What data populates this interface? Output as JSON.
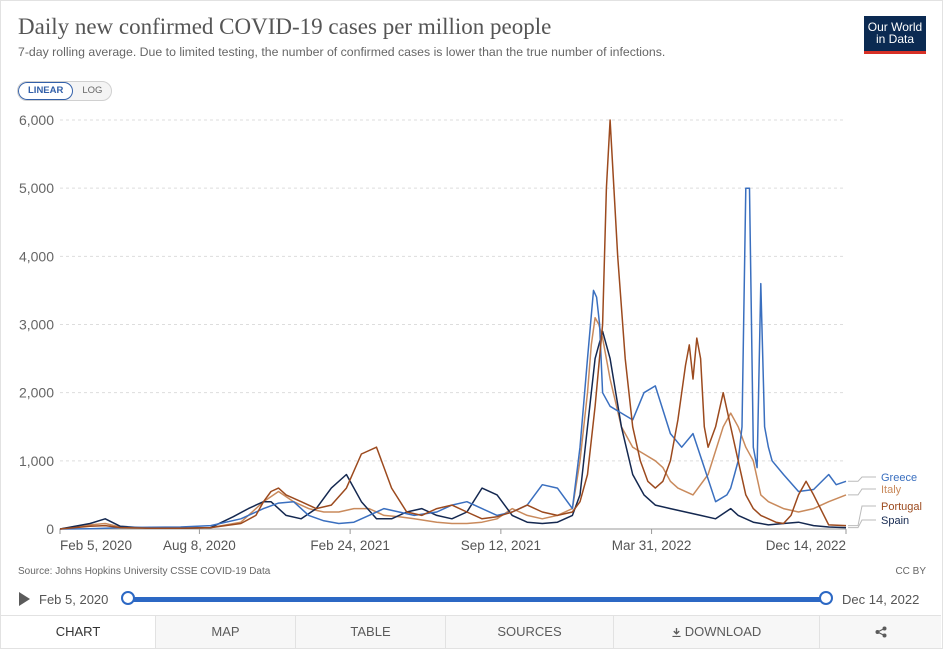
{
  "header": {
    "title": "Daily new confirmed COVID-19 cases per million people",
    "subtitle": "7-day rolling average. Due to limited testing, the number of confirmed cases is lower than the true number of infections.",
    "logo_line1": "Our World",
    "logo_line2": "in Data"
  },
  "scale_toggle": {
    "linear": "LINEAR",
    "log": "LOG"
  },
  "footer": {
    "source": "Source: Johns Hopkins University CSSE COVID-19 Data",
    "license": "CC BY"
  },
  "timeline": {
    "start": "Feb 5, 2020",
    "end": "Dec 14, 2022"
  },
  "tabs": {
    "chart": "CHART",
    "map": "MAP",
    "table": "TABLE",
    "sources": "SOURCES",
    "download": "DOWNLOAD"
  },
  "colors": {
    "Greece": "#3a6fbf",
    "Italy": "#c98a5c",
    "Portugal": "#9c4a1e",
    "Spain": "#142850"
  },
  "chart_data": {
    "type": "line",
    "title": "Daily new confirmed COVID-19 cases per million people",
    "ylabel": "",
    "xlabel": "",
    "ylim": [
      0,
      6000
    ],
    "xlim": [
      0,
      1043
    ],
    "x_unit": "days since Feb 5, 2020",
    "yticks": [
      0,
      1000,
      2000,
      3000,
      4000,
      5000,
      6000
    ],
    "ytick_labels": [
      "0",
      "1,000",
      "2,000",
      "3,000",
      "4,000",
      "5,000",
      "6,000"
    ],
    "xticks": [
      0,
      185,
      385,
      585,
      785,
      1043
    ],
    "xtick_labels": [
      "Feb 5, 2020",
      "Aug 8, 2020",
      "Feb 24, 2021",
      "Sep 12, 2021",
      "Mar 31, 2022",
      "Dec 14, 2022"
    ],
    "grid": true,
    "legend": "right",
    "series": [
      {
        "name": "Greece",
        "x": [
          0,
          40,
          60,
          80,
          120,
          160,
          200,
          240,
          270,
          290,
          310,
          330,
          350,
          370,
          390,
          410,
          430,
          450,
          470,
          500,
          520,
          540,
          560,
          580,
          600,
          620,
          640,
          660,
          680,
          690,
          700,
          708,
          712,
          716,
          720,
          730,
          745,
          760,
          775,
          790,
          810,
          825,
          840,
          855,
          870,
          885,
          890,
          895,
          900,
          905,
          910,
          915,
          920,
          925,
          930,
          935,
          940,
          945,
          960,
          980,
          1000,
          1020,
          1030,
          1043
        ],
        "values": [
          0,
          5,
          10,
          20,
          25,
          30,
          50,
          150,
          300,
          380,
          400,
          200,
          120,
          80,
          100,
          200,
          300,
          250,
          200,
          250,
          350,
          400,
          300,
          200,
          250,
          350,
          650,
          600,
          300,
          1200,
          2500,
          3500,
          3400,
          3000,
          2000,
          1800,
          1700,
          1600,
          2000,
          2100,
          1400,
          1200,
          1400,
          900,
          400,
          500,
          600,
          800,
          1000,
          1500,
          5000,
          5000,
          1200,
          900,
          3600,
          1500,
          1200,
          1000,
          800,
          550,
          580,
          800,
          650,
          700
        ]
      },
      {
        "name": "Italy",
        "x": [
          0,
          40,
          60,
          80,
          120,
          160,
          200,
          240,
          270,
          290,
          310,
          330,
          350,
          370,
          390,
          410,
          430,
          450,
          470,
          500,
          520,
          540,
          560,
          580,
          600,
          620,
          640,
          660,
          680,
          690,
          700,
          705,
          710,
          715,
          720,
          730,
          745,
          760,
          775,
          790,
          800,
          810,
          820,
          840,
          860,
          880,
          890,
          900,
          910,
          920,
          930,
          940,
          960,
          980,
          1000,
          1020,
          1043
        ],
        "values": [
          0,
          60,
          80,
          30,
          10,
          10,
          20,
          100,
          400,
          550,
          400,
          300,
          250,
          250,
          300,
          300,
          200,
          180,
          150,
          100,
          80,
          80,
          100,
          150,
          300,
          200,
          150,
          200,
          300,
          1000,
          2000,
          2700,
          3100,
          3000,
          2800,
          2200,
          1500,
          1200,
          1100,
          1000,
          900,
          700,
          600,
          500,
          800,
          1500,
          1700,
          1500,
          1200,
          1000,
          500,
          400,
          300,
          250,
          300,
          400,
          500
        ]
      },
      {
        "name": "Portugal",
        "x": [
          0,
          40,
          60,
          80,
          120,
          160,
          200,
          240,
          260,
          270,
          280,
          290,
          300,
          320,
          340,
          360,
          380,
          400,
          420,
          440,
          460,
          480,
          500,
          520,
          540,
          560,
          580,
          600,
          620,
          640,
          660,
          680,
          690,
          700,
          710,
          720,
          725,
          730,
          735,
          740,
          750,
          760,
          770,
          780,
          790,
          800,
          810,
          820,
          830,
          835,
          840,
          845,
          850,
          855,
          860,
          870,
          880,
          890,
          900,
          910,
          920,
          930,
          950,
          960,
          970,
          980,
          990,
          1000,
          1020,
          1043
        ],
        "values": [
          0,
          40,
          50,
          20,
          10,
          10,
          20,
          80,
          200,
          400,
          550,
          600,
          500,
          400,
          300,
          350,
          600,
          1100,
          1200,
          600,
          250,
          200,
          300,
          350,
          250,
          150,
          180,
          250,
          350,
          250,
          200,
          250,
          400,
          800,
          1800,
          3000,
          5000,
          6000,
          5000,
          4000,
          2500,
          1500,
          1000,
          700,
          600,
          700,
          1000,
          1600,
          2400,
          2700,
          2200,
          2800,
          2500,
          1500,
          1200,
          1500,
          2000,
          1500,
          1000,
          500,
          300,
          200,
          100,
          80,
          200,
          500,
          700,
          500,
          60,
          50
        ]
      },
      {
        "name": "Spain",
        "x": [
          0,
          40,
          60,
          80,
          120,
          160,
          200,
          230,
          250,
          260,
          270,
          280,
          300,
          320,
          340,
          360,
          380,
          400,
          420,
          440,
          460,
          480,
          500,
          520,
          540,
          560,
          580,
          600,
          620,
          640,
          660,
          680,
          690,
          700,
          710,
          720,
          730,
          745,
          760,
          775,
          790,
          810,
          830,
          850,
          870,
          890,
          900,
          910,
          920,
          930,
          940,
          960,
          980,
          1000,
          1020,
          1043
        ],
        "values": [
          0,
          80,
          150,
          40,
          10,
          10,
          20,
          180,
          300,
          350,
          400,
          400,
          200,
          150,
          300,
          600,
          800,
          400,
          150,
          150,
          250,
          300,
          200,
          150,
          250,
          600,
          500,
          200,
          100,
          80,
          100,
          200,
          500,
          1500,
          2500,
          2900,
          2500,
          1500,
          800,
          500,
          350,
          300,
          250,
          200,
          150,
          300,
          200,
          150,
          100,
          80,
          60,
          80,
          100,
          50,
          30,
          20
        ]
      }
    ]
  }
}
